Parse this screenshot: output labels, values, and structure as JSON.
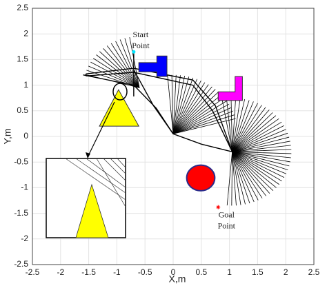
{
  "chart_data": {
    "type": "path-planning",
    "xlabel": "X,m",
    "ylabel": "Y,m",
    "xlim": [
      -2.5,
      2.5
    ],
    "ylim": [
      -2.5,
      2.5
    ],
    "xticks": [
      -2.5,
      -2,
      -1.5,
      -1,
      -0.5,
      0,
      0.5,
      1,
      1.5,
      2,
      2.5
    ],
    "yticks": [
      -2.5,
      -2,
      -1.5,
      -1,
      -0.5,
      0,
      0.5,
      1,
      1.5,
      2,
      2.5
    ],
    "grid": true,
    "start": {
      "x": -0.7,
      "y": 1.65,
      "color": "#00e5ff",
      "label": [
        "Start",
        "Point"
      ]
    },
    "goal": {
      "x": 0.8,
      "y": -1.38,
      "color": "#ff0000",
      "label": [
        "Goal",
        "Point"
      ]
    },
    "obstacles": [
      {
        "shape": "polygon",
        "color": "#0000ff",
        "x": [
          -0.61,
          -0.61,
          -0.29,
          -0.29,
          -0.11,
          -0.11,
          -0.29,
          -0.29
        ],
        "y": [
          1.26,
          1.44,
          1.44,
          1.57,
          1.57,
          1.17,
          1.17,
          1.26
        ]
      },
      {
        "shape": "polygon",
        "color": "#ff00ff",
        "x": [
          0.8,
          1.23,
          1.23,
          1.1,
          1.1,
          0.8
        ],
        "y": [
          0.7,
          0.7,
          1.17,
          1.17,
          0.87,
          0.87
        ]
      },
      {
        "shape": "polygon",
        "color": "#ffff00",
        "x": [
          -1.31,
          -0.61,
          -0.97
        ],
        "y": [
          0.2,
          0.2,
          0.91
        ]
      },
      {
        "shape": "circle",
        "color": "#ff0000",
        "cx": 0.49,
        "cy": -0.81,
        "r": 0.25
      }
    ],
    "paths": [
      {
        "x": [
          -1.55,
          -0.7,
          0.35,
          0.75,
          1.05
        ],
        "y": [
          1.22,
          1.33,
          1.1,
          0.6,
          -0.3
        ]
      },
      {
        "x": [
          -1.55,
          -0.7,
          0.35,
          0.7,
          1.05
        ],
        "y": [
          1.18,
          1.25,
          1.0,
          0.5,
          -0.3
        ]
      },
      {
        "x": [
          -0.7,
          -0.35,
          0.0,
          0.5,
          1.05
        ],
        "y": [
          1.3,
          0.6,
          0.05,
          -0.15,
          -0.3
        ]
      },
      {
        "x": [
          -1.6,
          -0.7,
          -0.3,
          0.0
        ],
        "y": [
          1.2,
          1.0,
          0.55,
          0.05
        ]
      },
      {
        "x": [
          -0.7,
          -0.7
        ],
        "y": [
          1.65,
          0.78
        ]
      }
    ],
    "fans": [
      {
        "cx": -0.6,
        "cy": 0.95,
        "radius": 1.0,
        "angles": [
          100,
          165
        ],
        "count": 14
      },
      {
        "cx": 0.0,
        "cy": 0.05,
        "radius": 1.15,
        "angles": [
          15,
          95
        ],
        "count": 22
      },
      {
        "cx": 1.05,
        "cy": -0.3,
        "radius": 1.05,
        "angles": [
          -95,
          100
        ],
        "count": 45
      }
    ]
  }
}
